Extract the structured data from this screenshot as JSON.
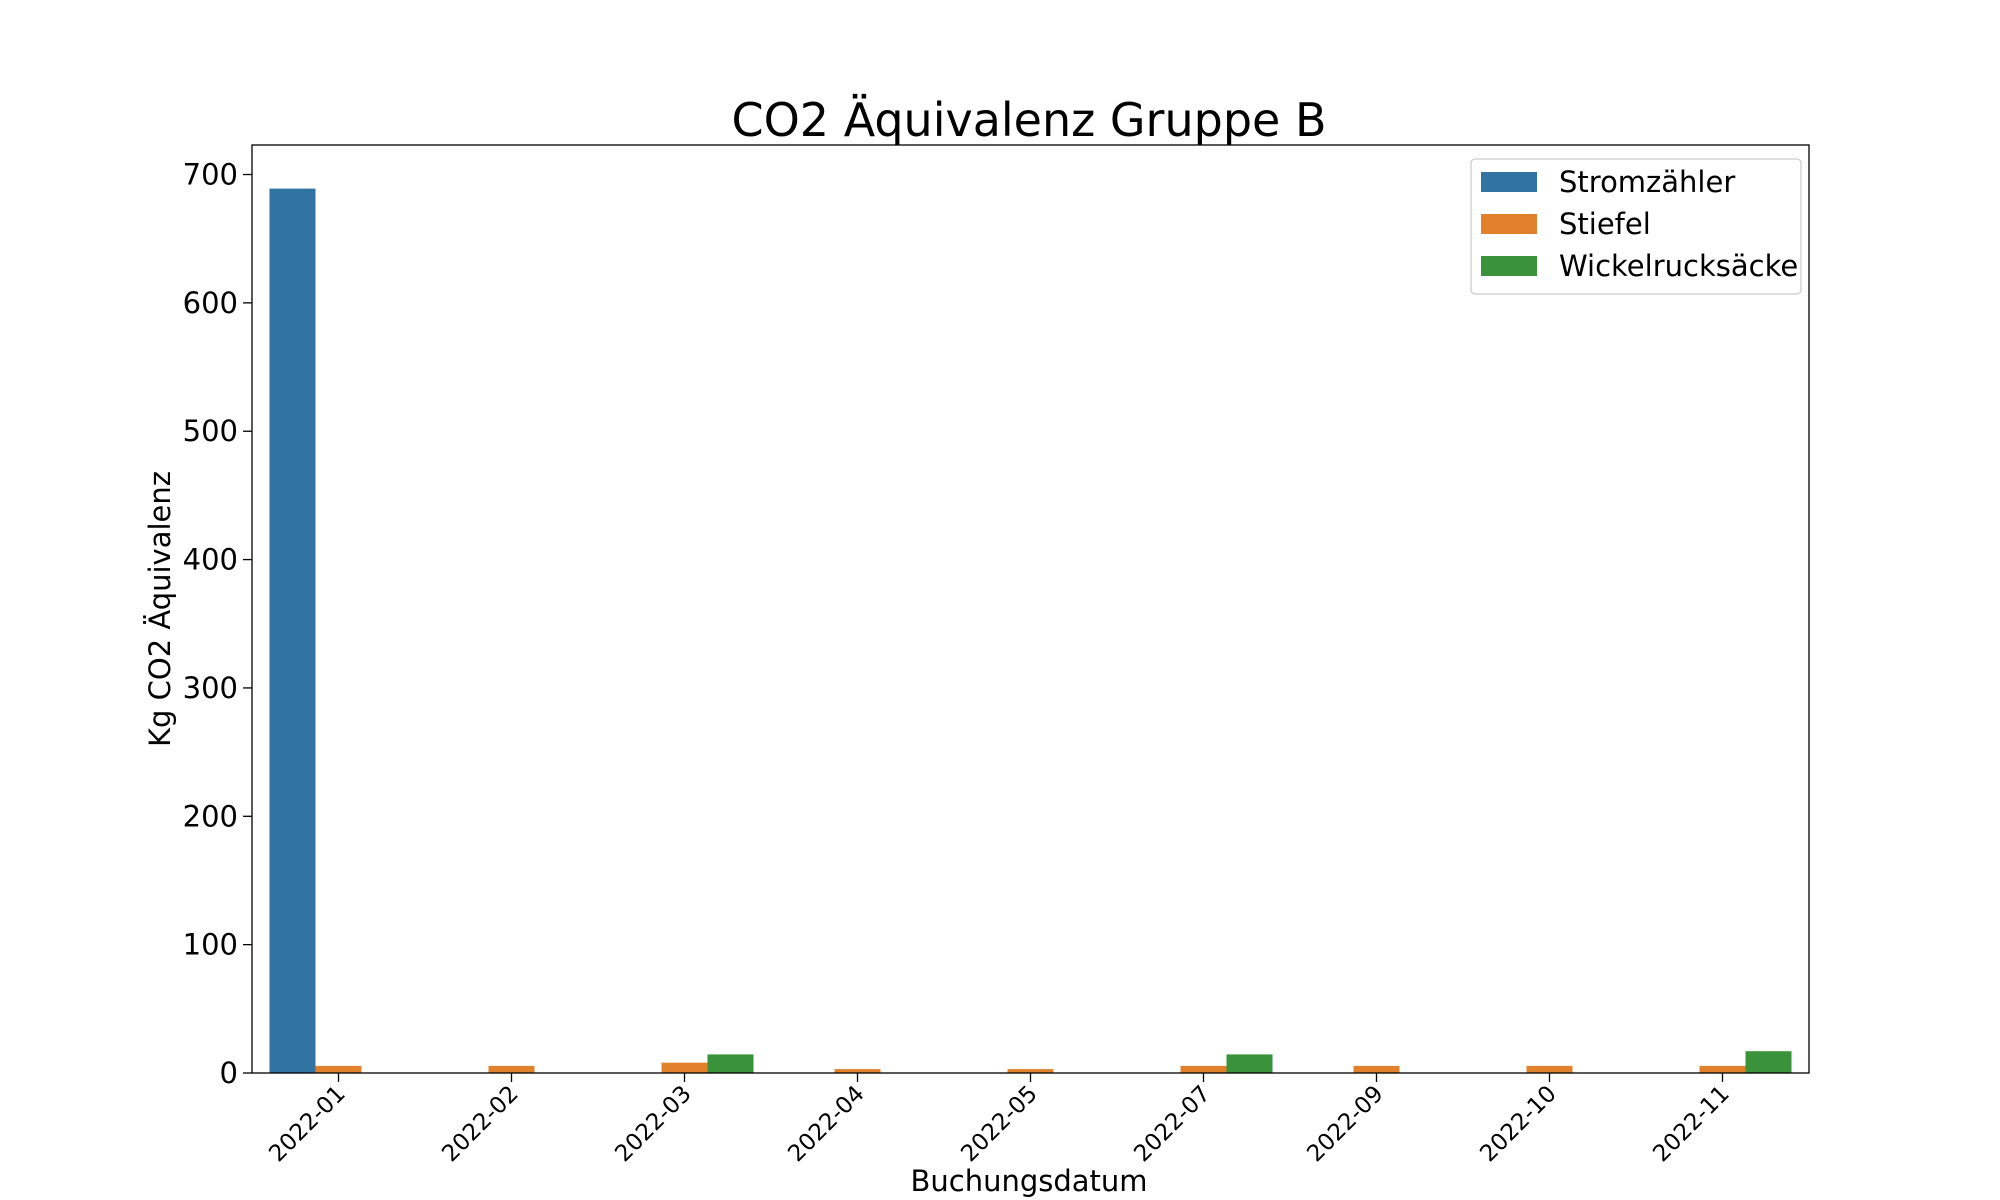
{
  "chart_data": {
    "type": "bar",
    "title": "CO2 Äquivalenz Gruppe B",
    "xlabel": "Buchungsdatum",
    "ylabel": "Kg CO2 Äquivalenz",
    "categories": [
      "2022-01",
      "2022-02",
      "2022-03",
      "2022-04",
      "2022-05",
      "2022-07",
      "2022-09",
      "2022-10",
      "2022-11"
    ],
    "ylim": [
      0,
      723
    ],
    "yticks": [
      0,
      100,
      200,
      300,
      400,
      500,
      600,
      700
    ],
    "series": [
      {
        "name": "Stromzähler",
        "color": "#3274a1",
        "values": [
          689,
          0,
          0,
          0,
          0,
          0,
          0,
          0,
          0
        ]
      },
      {
        "name": "Stiefel",
        "color": "#e1812c",
        "values": [
          5.5,
          5.5,
          8,
          3,
          3,
          5.5,
          5.5,
          5.5,
          5.5
        ]
      },
      {
        "name": "Wickelrucksäcke",
        "color": "#3a923a",
        "values": [
          0,
          0,
          14.5,
          0,
          0,
          14.5,
          0,
          0,
          17
        ]
      }
    ],
    "legend_position": "top-right",
    "grid": false
  }
}
